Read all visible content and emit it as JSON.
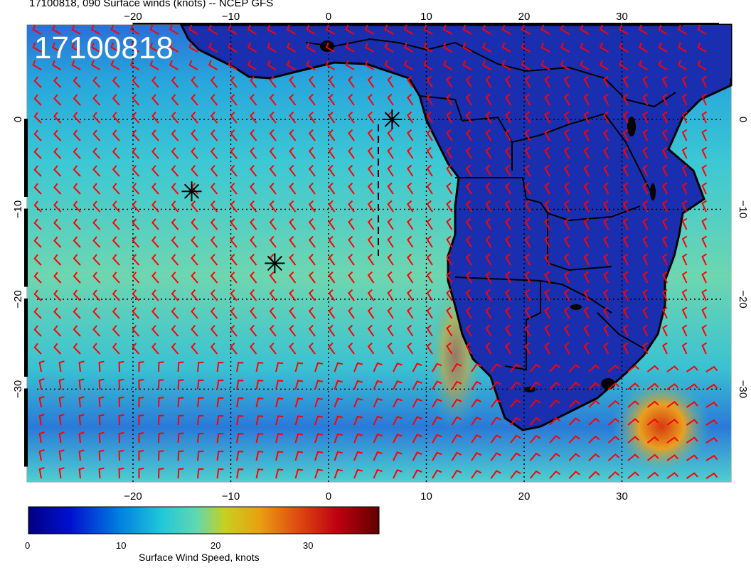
{
  "title": "17100818, 090 Surface winds (knots) -- NCEP GFS",
  "stamp": "17100818",
  "map": {
    "lon_range": [
      -30,
      40
    ],
    "lat_range": [
      -40,
      10
    ],
    "lon_ticks": [
      "−20",
      "−10",
      "0",
      "10",
      "20",
      "30"
    ],
    "lat_ticks": [
      "0",
      "−10",
      "−20",
      "−30"
    ],
    "ocean_color": "#2fc0d6",
    "land_color": "#1a2fb0",
    "barb_color": "#ff0000",
    "storm_markers": [
      {
        "lon": 6.5,
        "lat": 0
      },
      {
        "lon": -14,
        "lat": -8
      },
      {
        "lon": -5.5,
        "lat": -16
      }
    ]
  },
  "colorbar": {
    "ticks": [
      "0",
      "10",
      "20",
      "30"
    ],
    "title": "Surface Wind Speed, knots",
    "range": [
      0,
      36
    ]
  }
}
